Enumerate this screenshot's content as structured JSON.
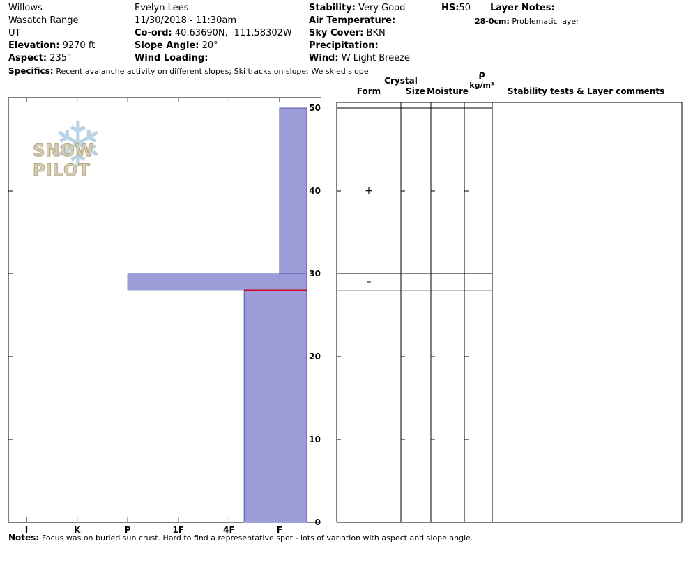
{
  "site": {
    "name": "Willows",
    "range": "Wasatch Range",
    "state": "UT",
    "elevation_label": "Elevation:",
    "elevation_value": "9270 ft",
    "aspect_label": "Aspect:",
    "aspect_value": "235°",
    "specifics_label": "Specifics:",
    "specifics_value": "Recent avalanche activity on different slopes;  Ski tracks on slope;  We skied slope"
  },
  "observation": {
    "observer": "Evelyn Lees",
    "datetime": "11/30/2018 - 11:30am",
    "coord_label": "Co-ord:",
    "coord_value": "40.63690N, -111.58302W",
    "slope_angle_label": "Slope Angle:",
    "slope_angle_value": "20°",
    "wind_loading_label": "Wind Loading:",
    "wind_loading_value": ""
  },
  "conditions": {
    "stability_label": "Stability:",
    "stability_value": "Very Good",
    "air_temp_label": "Air Temperature:",
    "air_temp_value": "",
    "sky_cover_label": "Sky Cover:",
    "sky_cover_value": "BKN",
    "precipitation_label": "Precipitation:",
    "precipitation_value": "",
    "wind_label": "Wind:",
    "wind_value": "W Light Breeze"
  },
  "hs": {
    "label": "HS:",
    "value": "50"
  },
  "layer_notes": {
    "label": "Layer Notes:",
    "entry_depth": "28-0cm:",
    "entry_text": "Problematic layer"
  },
  "logo": {
    "text": "SNOW PILOT"
  },
  "table_headers": {
    "crystal": "Crystal",
    "form": "Form",
    "size": "Size",
    "moisture": "Moisture",
    "density_symbol": "ρ",
    "density_units": "kg/m³",
    "comments": "Stability tests & Layer comments"
  },
  "notes": {
    "label": "Notes:",
    "text": "Focus was on buried sun crust.  Hard to find a representative spot - lots of variation with aspect and slope angle."
  },
  "chart_data": {
    "type": "bar",
    "subtype": "snow-hardness-profile",
    "x_axis": {
      "categories": [
        "I",
        "K",
        "P",
        "1F",
        "4F",
        "F"
      ]
    },
    "y_axis": {
      "min": 0,
      "max": 50,
      "ticks": [
        0,
        10,
        20,
        30,
        40,
        50
      ]
    },
    "snow_height_hs": 50,
    "layers": [
      {
        "top_cm": 50,
        "bottom_cm": 30,
        "hardness": "F",
        "hardness_scale": 5,
        "grain_form_symbol": "+",
        "flagged": false
      },
      {
        "top_cm": 30,
        "bottom_cm": 28,
        "hardness": "P",
        "hardness_scale": 2,
        "grain_form_symbol": "–",
        "flagged": false
      },
      {
        "top_cm": 28,
        "bottom_cm": 0,
        "hardness": "4F+",
        "hardness_scale": 4.3,
        "grain_form_symbol": "",
        "flagged": true
      }
    ],
    "colors": {
      "bar_fill": "#9c9cd9",
      "bar_border": "#5353a8",
      "flag_line": "#cc0022",
      "axis": "#000000"
    }
  }
}
